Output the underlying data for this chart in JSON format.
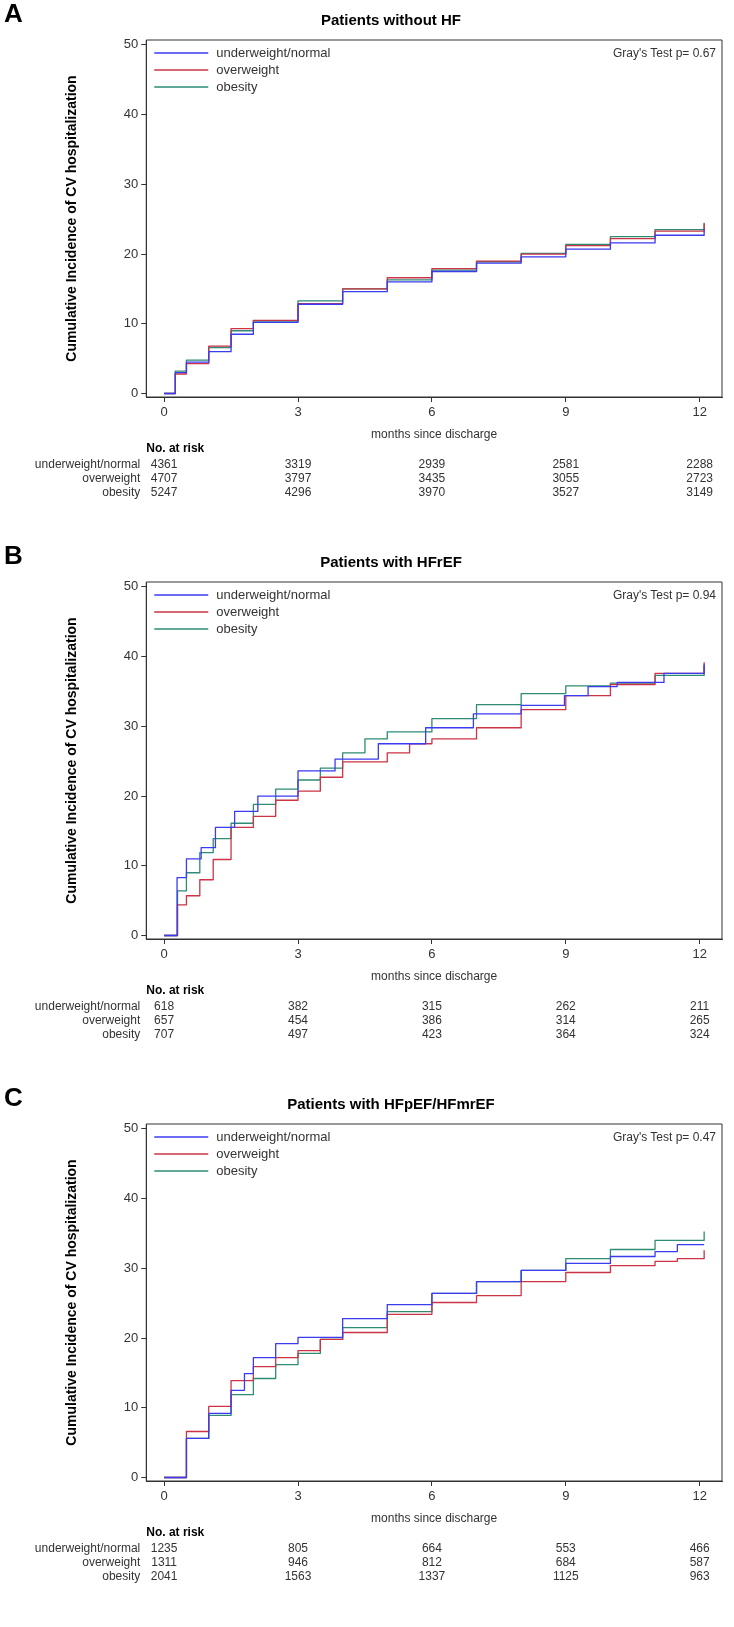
{
  "chart_data": [
    {
      "type": "step",
      "title": "Patients without HF",
      "xlabel": "months since discharge",
      "ylabel": "Cumulative Incidence of CV hospitalization",
      "xlim": [
        -0.4,
        12.5
      ],
      "ylim": [
        -0.5,
        50.7
      ],
      "xticks": [
        0,
        3,
        6,
        9,
        12
      ],
      "yticks": [
        0,
        10,
        20,
        30,
        40,
        50
      ],
      "grid": false,
      "legend": "top left",
      "marker": "none",
      "annotations": [
        "A",
        "Gray's Test p= 0.67",
        "No. at risk",
        "underweight/normal",
        "4361",
        "3319",
        "2939",
        "2581",
        "2288",
        "overweight",
        "4707",
        "3797",
        "3435",
        "3055",
        "2723",
        "obesity",
        "5247",
        "4296",
        "3970",
        "3527",
        "3149"
      ],
      "series": [
        {
          "name": "underweight/normal",
          "color": "#3b3bf2",
          "x": [
            0,
            0.25,
            0.5,
            1,
            1.5,
            2,
            3,
            4,
            5,
            6,
            7,
            8,
            9,
            10,
            11,
            12.1
          ],
          "values": [
            0,
            3,
            4.5,
            6,
            8.5,
            10.2,
            12.8,
            14.6,
            16,
            17.5,
            18.7,
            19.6,
            20.7,
            21.6,
            22.7,
            23.6
          ]
        },
        {
          "name": "overweight",
          "color": "#cc3344",
          "x": [
            0,
            0.25,
            0.5,
            1,
            1.5,
            2,
            3,
            4,
            5,
            6,
            7,
            8,
            9,
            10,
            11,
            12.1
          ],
          "values": [
            0,
            2.8,
            4.3,
            6.8,
            9.3,
            10.5,
            12.9,
            15,
            16.6,
            17.9,
            19,
            20,
            21.2,
            22.2,
            23.3,
            24.4
          ]
        },
        {
          "name": "obesity",
          "color": "#2e8b74",
          "x": [
            0,
            0.25,
            0.5,
            1,
            1.5,
            2,
            3,
            4,
            5,
            6,
            7,
            8,
            9,
            10,
            11,
            12.1
          ],
          "values": [
            0,
            3.2,
            4.8,
            6.6,
            9,
            10.4,
            13.3,
            15,
            16.3,
            17.7,
            18.9,
            20.1,
            21.4,
            22.5,
            23.5,
            24.5
          ]
        }
      ]
    },
    {
      "type": "step",
      "title": "Patients with HFrEF",
      "xlabel": "months since discharge",
      "ylabel": "Cumulative Incidence of CV hospitalization",
      "xlim": [
        -0.4,
        12.5
      ],
      "ylim": [
        -0.5,
        50.7
      ],
      "xticks": [
        0,
        3,
        6,
        9,
        12
      ],
      "yticks": [
        0,
        10,
        20,
        30,
        40,
        50
      ],
      "grid": false,
      "legend": "top left",
      "marker": "none",
      "annotations": [
        "B",
        "Gray's Test p= 0.94",
        "No. at risk",
        "underweight/normal",
        "618",
        "382",
        "315",
        "262",
        "211",
        "overweight",
        "657",
        "454",
        "386",
        "314",
        "265",
        "obesity",
        "707",
        "497",
        "423",
        "364",
        "324"
      ],
      "series": [
        {
          "name": "underweight/normal",
          "color": "#3b3bf2",
          "x": [
            0,
            0.29,
            0.5,
            0.83,
            1.15,
            1.58,
            2.1,
            3,
            3.83,
            4.8,
            5.86,
            6.93,
            8,
            8.97,
            9.5,
            10.15,
            11.2,
            12.1
          ],
          "values": [
            0,
            8.3,
            11,
            12.6,
            15.5,
            17.8,
            20,
            23.6,
            25.3,
            27.5,
            29.8,
            31.8,
            33,
            34.4,
            35.7,
            36.3,
            37.6,
            38.9
          ]
        },
        {
          "name": "overweight",
          "color": "#cc3344",
          "x": [
            0,
            0.3,
            0.5,
            0.8,
            1.1,
            1.5,
            2,
            2.5,
            3,
            3.5,
            4,
            4.6,
            5,
            5.5,
            6,
            7,
            8,
            9,
            10,
            11,
            12.1
          ],
          "values": [
            0,
            4.4,
            5.7,
            8,
            10.9,
            15.5,
            17.1,
            19.4,
            20.7,
            22.7,
            24.9,
            24.9,
            26.2,
            27.5,
            28.2,
            29.8,
            32.4,
            34.4,
            36,
            37.6,
            39.2
          ]
        },
        {
          "name": "obesity",
          "color": "#2e8b74",
          "x": [
            0,
            0.3,
            0.5,
            0.8,
            1.1,
            1.5,
            2,
            2.5,
            3,
            3.5,
            4,
            4.5,
            5,
            6,
            7,
            8,
            9,
            10,
            11,
            12.1
          ],
          "values": [
            0,
            6.4,
            9,
            11.9,
            13.9,
            16.1,
            18.8,
            21,
            22.3,
            24,
            26.2,
            28.2,
            29.2,
            31.1,
            33.1,
            34.7,
            35.8,
            36.2,
            37.3,
            38.7
          ]
        }
      ]
    },
    {
      "type": "step",
      "title": "Patients with HFpEF/HFmrEF",
      "xlabel": "months since discharge",
      "ylabel": "Cumulative Incidence of CV hospitalization",
      "xlim": [
        -0.4,
        12.5
      ],
      "ylim": [
        -0.5,
        50.7
      ],
      "xticks": [
        0,
        3,
        6,
        9,
        12
      ],
      "yticks": [
        0,
        10,
        20,
        30,
        40,
        50
      ],
      "grid": false,
      "legend": "top left",
      "marker": "none",
      "annotations": [
        "C",
        "Gray's Test p= 0.47",
        "No. at risk",
        "underweight/normal",
        "1235",
        "805",
        "664",
        "553",
        "466",
        "overweight",
        "1311",
        "946",
        "812",
        "684",
        "587",
        "obesity",
        "2041",
        "1563",
        "1337",
        "1125",
        "963"
      ],
      "series": [
        {
          "name": "underweight/normal",
          "color": "#3b3bf2",
          "x": [
            0,
            0.5,
            1,
            1.5,
            1.8,
            2,
            2.5,
            3,
            4,
            5,
            6,
            7,
            8,
            9,
            10,
            11,
            11.5,
            12.1
          ],
          "values": [
            0,
            5.6,
            9.2,
            12.5,
            14.9,
            17.2,
            19.2,
            20.1,
            22.8,
            24.8,
            26.4,
            28.1,
            29.7,
            30.7,
            31.7,
            32.4,
            33.4,
            33.4
          ]
        },
        {
          "name": "overweight",
          "color": "#cc3344",
          "x": [
            0,
            0.5,
            1,
            1.5,
            2,
            2.5,
            3,
            3.5,
            4,
            5,
            6,
            7,
            8,
            9,
            10,
            11,
            11.5,
            12.1
          ],
          "values": [
            0,
            6.6,
            10.2,
            13.9,
            15.9,
            17.2,
            18.2,
            19.8,
            20.8,
            23.4,
            25.1,
            26.1,
            28.1,
            29.4,
            30.4,
            31,
            31.4,
            32.6
          ]
        },
        {
          "name": "obesity",
          "color": "#2e8b74",
          "x": [
            0,
            0.5,
            1,
            1.5,
            2,
            2.5,
            3,
            3.5,
            4,
            5,
            6,
            7,
            8,
            9,
            10,
            11,
            12.1
          ],
          "values": [
            0,
            5.6,
            8.9,
            11.9,
            14.2,
            16.2,
            17.8,
            19.8,
            21.5,
            23.8,
            26.4,
            28.1,
            29.7,
            31.4,
            32.7,
            34,
            35.3
          ]
        }
      ]
    }
  ]
}
